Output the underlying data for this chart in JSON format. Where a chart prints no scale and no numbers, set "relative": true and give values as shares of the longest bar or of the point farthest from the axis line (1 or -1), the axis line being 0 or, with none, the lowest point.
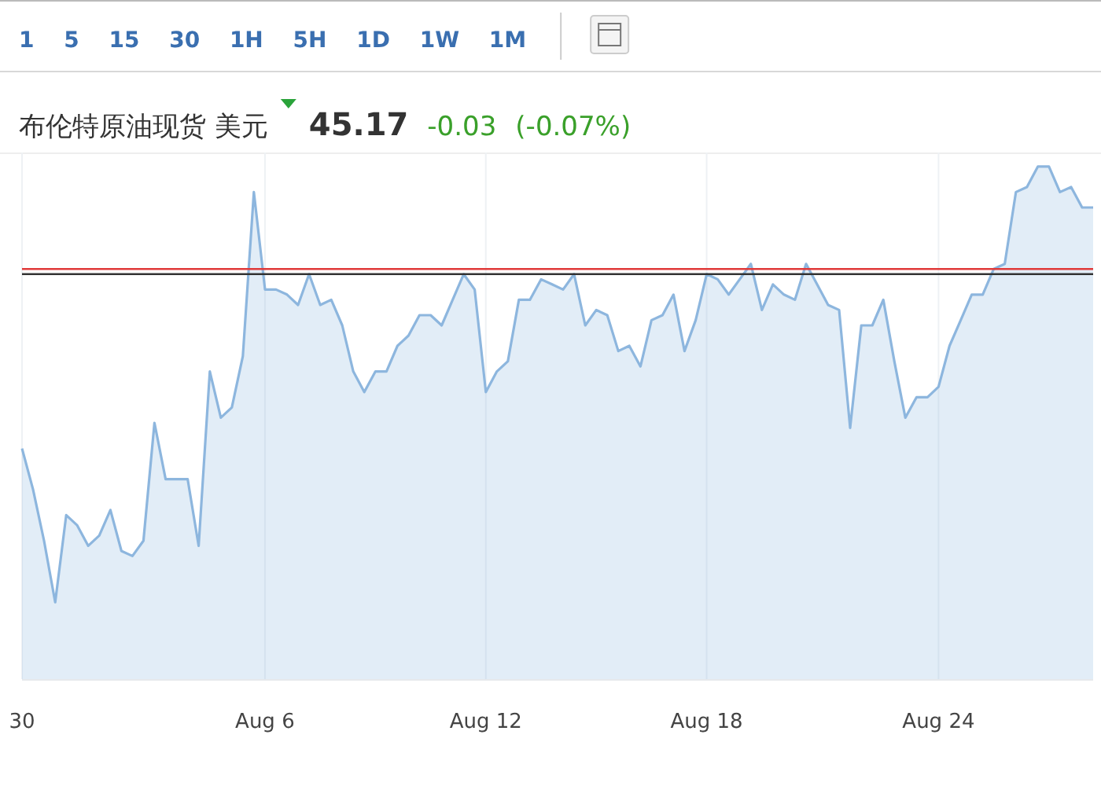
{
  "chart_data": {
    "type": "area",
    "title": "布伦特原油现货 美元",
    "relative": true,
    "color": "#8db6de",
    "grid": "x",
    "annotations": [
      "1 5 15 30 1H 5H 1D 1W 1M",
      "45.17",
      "-0.03",
      "(-0.07%)"
    ],
    "categories": [
      "30",
      null,
      null,
      null,
      null,
      null,
      null,
      null,
      null,
      null,
      null,
      null,
      null,
      null,
      null,
      null,
      null,
      null,
      null,
      null,
      null,
      null,
      "Aug 6",
      null,
      null,
      null,
      null,
      null,
      null,
      null,
      null,
      null,
      null,
      null,
      null,
      null,
      null,
      null,
      null,
      null,
      null,
      null,
      "Aug 12",
      null,
      null,
      null,
      null,
      null,
      null,
      null,
      null,
      null,
      null,
      null,
      null,
      null,
      null,
      null,
      null,
      null,
      null,
      null,
      "Aug 18",
      null,
      null,
      null,
      null,
      null,
      null,
      null,
      null,
      null,
      null,
      null,
      null,
      null,
      null,
      null,
      null,
      null,
      null,
      null,
      null,
      "Aug 24",
      null,
      null,
      null,
      null,
      null,
      null,
      null,
      null,
      null,
      null,
      null,
      null,
      null,
      null
    ],
    "values": [
      0.45,
      0.37,
      0.27,
      0.15,
      0.32,
      0.3,
      0.26,
      0.28,
      0.33,
      0.25,
      0.24,
      0.27,
      0.5,
      0.39,
      0.39,
      0.39,
      0.26,
      0.6,
      0.51,
      0.53,
      0.63,
      0.95,
      0.76,
      0.76,
      0.75,
      0.73,
      0.79,
      0.73,
      0.74,
      0.69,
      0.6,
      0.56,
      0.6,
      0.6,
      0.65,
      0.67,
      0.71,
      0.71,
      0.69,
      0.74,
      0.79,
      0.76,
      0.56,
      0.6,
      0.62,
      0.74,
      0.74,
      0.78,
      0.77,
      0.76,
      0.79,
      0.69,
      0.72,
      0.71,
      0.64,
      0.65,
      0.61,
      0.7,
      0.71,
      0.75,
      0.64,
      0.7,
      0.79,
      0.78,
      0.75,
      0.78,
      0.81,
      0.72,
      0.77,
      0.75,
      0.74,
      0.81,
      0.77,
      0.73,
      0.72,
      0.49,
      0.69,
      0.69,
      0.74,
      0.62,
      0.51,
      0.55,
      0.55,
      0.57,
      0.65,
      0.7,
      0.75,
      0.75,
      0.8,
      0.81,
      0.95,
      0.96,
      1.0,
      1.0,
      0.95,
      0.96,
      0.92,
      0.92
    ],
    "ref_lines": [
      {
        "axis": "y",
        "value": 0.8,
        "color": "#e03a3a"
      },
      {
        "axis": "y",
        "value": 0.79,
        "color": "#333333"
      }
    ]
  }
}
